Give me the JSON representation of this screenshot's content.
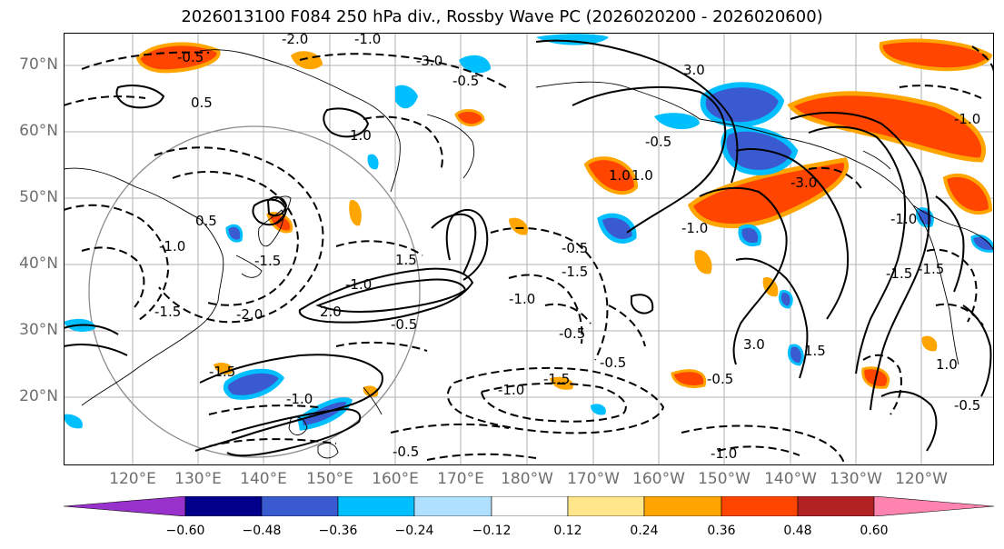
{
  "title": "2026013100 F084 250 hPa div., Rossby Wave PC (2026020200 - 2026020600)",
  "map": {
    "lat_labels": [
      "70°N",
      "60°N",
      "50°N",
      "40°N",
      "30°N",
      "20°N"
    ],
    "lon_labels": [
      "120°E",
      "130°E",
      "140°E",
      "150°E",
      "160°E",
      "170°E",
      "180°W",
      "170°W",
      "160°W",
      "150°W",
      "140°W",
      "130°W",
      "120°W"
    ],
    "contour_labels": [
      "-0.5",
      "-2.0",
      "-1.0",
      "0.5",
      "-3.0",
      "3.0",
      "-0.5",
      "1.0",
      "1.0",
      "-1.0",
      "-1.5",
      "0.5",
      "-2.0",
      "-1.5",
      "2.0",
      "-1.0",
      "-1.0",
      "-1.5",
      "-0.5",
      "1.5",
      "-0.5",
      "-1.5",
      "-1.0",
      "-0.5",
      "-0.5",
      "-0.5",
      "3.0",
      "-1.0",
      "-3.0",
      "-1.0",
      "-0.5",
      "1.0",
      "1.0",
      "1.5",
      "-1.5",
      "-1.0",
      "-1.5",
      "-1.0",
      "-0.5",
      "-1.5",
      "-1.0",
      "-0.5"
    ],
    "colors": {
      "land_border": "#000000",
      "gridline": "#b0b0b0",
      "circle": "#8c8c8c"
    }
  },
  "colorbar": {
    "tick_labels": [
      "−0.60",
      "−0.48",
      "−0.36",
      "−0.24",
      "−0.12",
      "0.12",
      "0.24",
      "0.36",
      "0.48",
      "0.60"
    ],
    "colors": [
      "#9932cc",
      "#00008b",
      "#3a5bd0",
      "#00bfff",
      "#b0e0ff",
      "#ffffff",
      "#ffe68a",
      "#ffa500",
      "#ff4500",
      "#b22222",
      "#ff85b0"
    ]
  }
}
